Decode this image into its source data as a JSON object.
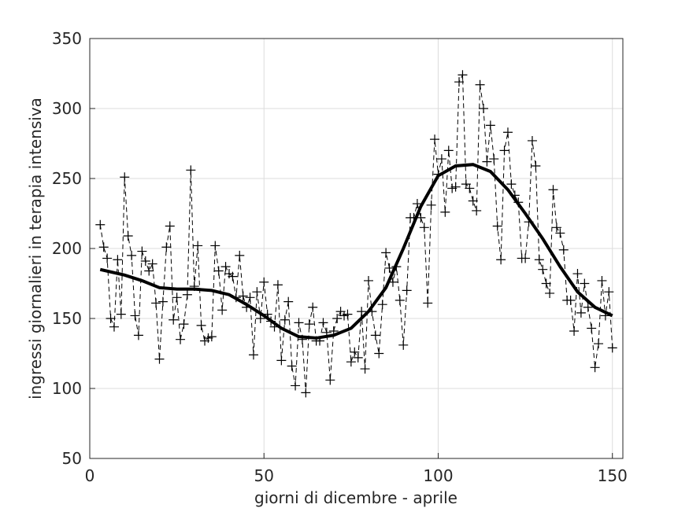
{
  "chart_data": {
    "type": "line",
    "xlabel": "giorni di dicembre - aprile",
    "ylabel": "ingressi giornalieri in terapia intensiva",
    "xlim": [
      0,
      153
    ],
    "ylim": [
      50,
      350
    ],
    "xticks": [
      0,
      50,
      100,
      150
    ],
    "yticks": [
      50,
      100,
      150,
      200,
      250,
      300,
      350
    ],
    "grid": true,
    "series": [
      {
        "color": "#000000",
        "line_style": "dashed",
        "marker": "plus",
        "x": [
          3,
          4,
          5,
          6,
          7,
          8,
          9,
          10,
          11,
          12,
          13,
          14,
          15,
          16,
          17,
          18,
          19,
          20,
          21,
          22,
          23,
          24,
          25,
          26,
          27,
          28,
          29,
          30,
          31,
          32,
          33,
          34,
          35,
          36,
          37,
          38,
          39,
          40,
          41,
          42,
          43,
          44,
          45,
          46,
          47,
          48,
          49,
          50,
          51,
          52,
          53,
          54,
          55,
          56,
          57,
          58,
          59,
          60,
          61,
          62,
          63,
          64,
          65,
          66,
          67,
          68,
          69,
          70,
          71,
          72,
          73,
          74,
          75,
          76,
          77,
          78,
          79,
          80,
          81,
          82,
          83,
          84,
          85,
          86,
          87,
          88,
          89,
          90,
          91,
          92,
          93,
          94,
          95,
          96,
          97,
          98,
          99,
          100,
          101,
          102,
          103,
          104,
          105,
          106,
          107,
          108,
          109,
          110,
          111,
          112,
          113,
          114,
          115,
          116,
          117,
          118,
          119,
          120,
          121,
          122,
          123,
          124,
          125,
          126,
          127,
          128,
          129,
          130,
          131,
          132,
          133,
          134,
          135,
          136,
          137,
          138,
          139,
          140,
          141,
          142,
          143,
          144,
          145,
          146,
          147,
          148,
          149,
          150
        ],
        "values": [
          217,
          201,
          193,
          150,
          144,
          192,
          153,
          251,
          209,
          195,
          152,
          138,
          198,
          191,
          184,
          189,
          161,
          121,
          162,
          201,
          216,
          149,
          165,
          135,
          146,
          167,
          256,
          173,
          202,
          145,
          134,
          136,
          137,
          202,
          184,
          156,
          187,
          182,
          180,
          165,
          195,
          166,
          158,
          165,
          124,
          169,
          150,
          176,
          153,
          148,
          144,
          174,
          120,
          149,
          162,
          116,
          102,
          147,
          135,
          97,
          146,
          158,
          134,
          134,
          147,
          140,
          106,
          141,
          150,
          155,
          152,
          153,
          119,
          126,
          122,
          155,
          114,
          177,
          155,
          138,
          125,
          160,
          197,
          186,
          176,
          187,
          163,
          131,
          170,
          222,
          222,
          232,
          222,
          215,
          161,
          231,
          278,
          253,
          264,
          226,
          270,
          243,
          244,
          319,
          324,
          246,
          243,
          234,
          227,
          317,
          300,
          262,
          288,
          264,
          216,
          192,
          270,
          283,
          246,
          238,
          233,
          193,
          193,
          219,
          277,
          259,
          192,
          185,
          175,
          168,
          242,
          215,
          211,
          199,
          163,
          163,
          141,
          182,
          154,
          175,
          158,
          143,
          115,
          132,
          177,
          152,
          169,
          129
        ]
      },
      {
        "color": "#000000",
        "line_style": "solid",
        "x": [
          3,
          10,
          15,
          20,
          25,
          30,
          35,
          40,
          45,
          50,
          55,
          60,
          65,
          70,
          75,
          80,
          85,
          90,
          95,
          100,
          105,
          110,
          115,
          120,
          125,
          130,
          135,
          140,
          145,
          150
        ],
        "values": [
          185,
          181,
          177,
          172,
          171,
          171,
          170,
          167,
          160,
          152,
          143,
          137,
          136,
          138,
          143,
          155,
          172,
          200,
          230,
          252,
          259,
          260,
          255,
          242,
          225,
          207,
          187,
          169,
          158,
          152
        ]
      }
    ]
  }
}
